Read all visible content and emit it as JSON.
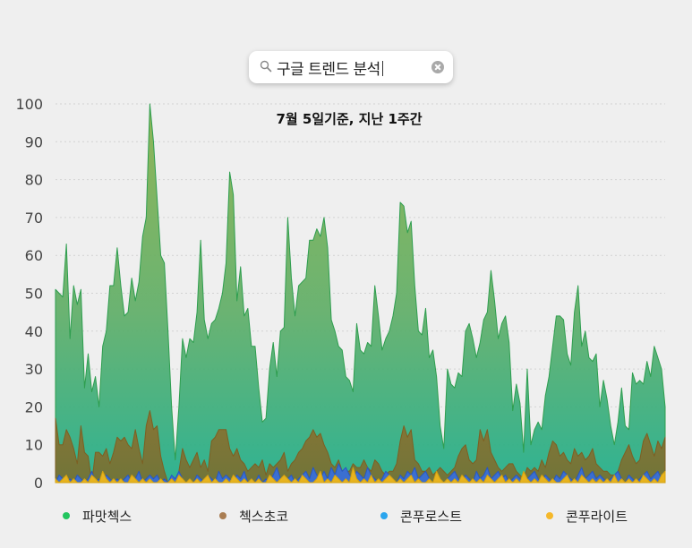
{
  "search": {
    "text": "구글 트렌드 분석"
  },
  "colors": {
    "background": "#efefef",
    "green": "#3cb371",
    "brown": "#9c7b3c",
    "blue": "#2b6fd6",
    "yellow": "#e3b420"
  },
  "legend": [
    {
      "label": "파맛첵스",
      "color": "#22c55e"
    },
    {
      "label": "첵스초코",
      "color": "#a97d52"
    },
    {
      "label": "콘푸로스트",
      "color": "#2aa5ee"
    },
    {
      "label": "콘푸라이트",
      "color": "#f5b82a"
    }
  ],
  "chart_data": {
    "type": "area",
    "title": "7월 5일기준, 지난 1주간",
    "xlabel": "",
    "ylabel": "",
    "ylim": [
      0,
      100
    ],
    "yticks": [
      0,
      10,
      20,
      30,
      40,
      50,
      60,
      70,
      80,
      90,
      100
    ],
    "grid": true,
    "legend_position": "bottom",
    "series": [
      {
        "name": "파맛첵스",
        "values": [
          51,
          50,
          49,
          63,
          38,
          52,
          47,
          51,
          25,
          34,
          24,
          28,
          20,
          36,
          40,
          52,
          52,
          62,
          52,
          44,
          45,
          54,
          48,
          53,
          65,
          70,
          100,
          90,
          75,
          60,
          58,
          40,
          20,
          6,
          20,
          38,
          33,
          38,
          37,
          45,
          64,
          43,
          38,
          42,
          43,
          46,
          50,
          58,
          82,
          76,
          48,
          57,
          44,
          46,
          36,
          36,
          25,
          16,
          17,
          30,
          37,
          28,
          40,
          41,
          70,
          54,
          44,
          52,
          53,
          54,
          64,
          64,
          67,
          65,
          70,
          62,
          43,
          40,
          36,
          35,
          28,
          27,
          24,
          42,
          35,
          34,
          37,
          36,
          52,
          44,
          35,
          38,
          40,
          44,
          50,
          74,
          73,
          66,
          69,
          52,
          40,
          39,
          46,
          33,
          35,
          28,
          15,
          9,
          30,
          26,
          25,
          29,
          28,
          40,
          42,
          38,
          33,
          37,
          43,
          45,
          56,
          48,
          38,
          42,
          44,
          37,
          19,
          26,
          21,
          8,
          30,
          10,
          14,
          16,
          14,
          23,
          28,
          36,
          44,
          44,
          43,
          34,
          31,
          45,
          52,
          36,
          40,
          33,
          32,
          34,
          20,
          27,
          22,
          15,
          10,
          16,
          25,
          15,
          14,
          29,
          26,
          27,
          26,
          32,
          28,
          36,
          33,
          30,
          20
        ],
        "color": "#3cb371"
      },
      {
        "name": "첵스초코",
        "values": [
          17,
          10,
          10,
          14,
          12,
          9,
          5,
          15,
          8,
          7,
          0,
          8,
          8,
          7,
          9,
          5,
          8,
          12,
          11,
          12,
          10,
          9,
          14,
          9,
          5,
          15,
          19,
          14,
          15,
          7,
          3,
          0,
          0,
          0,
          3,
          9,
          6,
          4,
          6,
          8,
          4,
          6,
          3,
          11,
          12,
          14,
          14,
          14,
          9,
          7,
          9,
          6,
          5,
          3,
          4,
          5,
          4,
          6,
          2,
          5,
          4,
          5,
          6,
          8,
          3,
          5,
          6,
          8,
          9,
          11,
          12,
          14,
          12,
          13,
          10,
          8,
          5,
          4,
          6,
          3,
          3,
          3,
          5,
          4,
          4,
          6,
          4,
          3,
          6,
          5,
          3,
          2,
          3,
          3,
          5,
          11,
          15,
          12,
          14,
          6,
          5,
          3,
          3,
          4,
          2,
          3,
          4,
          3,
          2,
          3,
          4,
          7,
          9,
          10,
          6,
          5,
          6,
          14,
          11,
          14,
          8,
          6,
          4,
          3,
          4,
          5,
          5,
          3,
          2,
          1,
          4,
          3,
          4,
          3,
          6,
          4,
          8,
          11,
          10,
          7,
          8,
          6,
          5,
          9,
          7,
          8,
          6,
          7,
          9,
          5,
          4,
          3,
          3,
          2,
          2,
          3,
          6,
          8,
          10,
          7,
          5,
          6,
          11,
          13,
          10,
          7,
          11,
          9,
          12
        ],
        "color": "#9c7b3c"
      },
      {
        "name": "콘푸로스트",
        "values": [
          0,
          2,
          1,
          0,
          1,
          0,
          2,
          1,
          0,
          1,
          3,
          0,
          1,
          0,
          2,
          1,
          0,
          1,
          0,
          1,
          2,
          0,
          1,
          3,
          0,
          1,
          2,
          1,
          2,
          0,
          1,
          0,
          2,
          1,
          3,
          1,
          0,
          1,
          0,
          2,
          1,
          0,
          2,
          1,
          0,
          3,
          1,
          2,
          1,
          0,
          2,
          1,
          3,
          0,
          1,
          0,
          2,
          0,
          1,
          0,
          2,
          4,
          1,
          0,
          1,
          2,
          0,
          1,
          2,
          3,
          1,
          4,
          2,
          1,
          3,
          1,
          4,
          2,
          5,
          3,
          4,
          2,
          1,
          3,
          2,
          1,
          4,
          2,
          1,
          0,
          1,
          3,
          2,
          1,
          0,
          2,
          1,
          3,
          2,
          4,
          1,
          2,
          3,
          1,
          0,
          2,
          1,
          0,
          1,
          2,
          3,
          1,
          0,
          2,
          1,
          0,
          3,
          1,
          2,
          4,
          1,
          2,
          3,
          1,
          2,
          0,
          1,
          2,
          1,
          0,
          1,
          2,
          3,
          1,
          0,
          2,
          1,
          0,
          2,
          1,
          3,
          2,
          1,
          0,
          2,
          4,
          1,
          2,
          3,
          1,
          2,
          1,
          0,
          1,
          2,
          3,
          1,
          0,
          2,
          1,
          0,
          1,
          2,
          3,
          1,
          2,
          3,
          1,
          2
        ],
        "color": "#2b6fd6"
      },
      {
        "name": "콘푸라이트",
        "values": [
          1,
          0,
          1,
          2,
          0,
          1,
          0,
          0,
          1,
          0,
          2,
          1,
          0,
          3,
          1,
          0,
          1,
          0,
          1,
          0,
          0,
          2,
          1,
          0,
          1,
          0,
          1,
          0,
          0,
          1,
          0,
          0,
          1,
          0,
          2,
          1,
          0,
          1,
          0,
          1,
          0,
          1,
          2,
          0,
          1,
          0,
          0,
          1,
          0,
          2,
          1,
          0,
          1,
          0,
          1,
          0,
          1,
          0,
          0,
          2,
          1,
          0,
          1,
          2,
          1,
          0,
          1,
          0,
          2,
          1,
          0,
          0,
          1,
          3,
          0,
          1,
          0,
          2,
          1,
          0,
          1,
          0,
          4,
          1,
          0,
          1,
          0,
          2,
          0,
          1,
          0,
          1,
          2,
          1,
          0,
          1,
          0,
          1,
          2,
          0,
          1,
          0,
          0,
          1,
          0,
          3,
          1,
          0,
          1,
          0,
          1,
          0,
          2,
          1,
          0,
          1,
          0,
          1,
          0,
          2,
          1,
          0,
          1,
          2,
          0,
          1,
          0,
          1,
          0,
          3,
          1,
          0,
          1,
          0,
          2,
          1,
          0,
          1,
          0,
          0,
          1,
          2,
          0,
          1,
          0,
          2,
          1,
          0,
          1,
          0,
          1,
          0,
          1,
          0,
          2,
          0,
          1,
          0,
          1,
          0,
          1,
          0,
          2,
          1,
          0,
          1,
          0,
          2,
          3
        ],
        "color": "#e3b420"
      }
    ]
  }
}
